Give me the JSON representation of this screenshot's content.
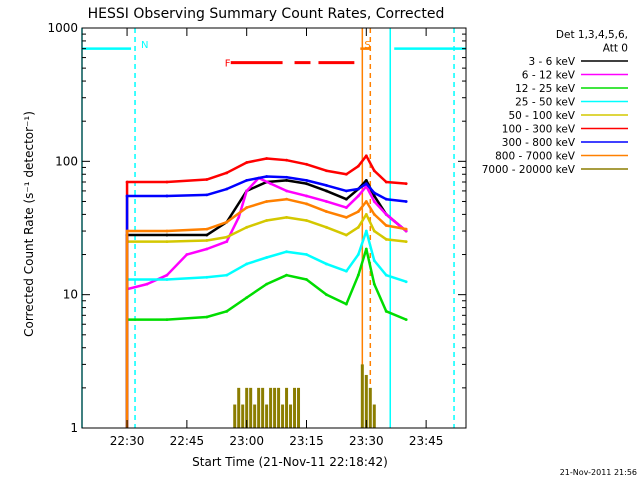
{
  "chart_data": {
    "type": "line",
    "title": "HESSI Observing Summary Count Rates, Corrected",
    "xlabel": "Start Time (21-Nov-11 22:18:42)",
    "ylabel": "Corrected Count Rate (s⁻¹ detector⁻¹)",
    "yscale": "log",
    "ylim": [
      1,
      1000
    ],
    "xlim": [
      "22:18:42",
      "23:55:00"
    ],
    "x_ticks": [
      "22:30",
      "22:45",
      "23:00",
      "23:15",
      "23:30",
      "23:45"
    ],
    "y_ticks": [
      "1",
      "10",
      "100",
      "1000"
    ],
    "legend": {
      "title_lines": [
        "Det 1,3,4,5,6,",
        "Att 0"
      ],
      "placement": "right",
      "entries": [
        {
          "label": "3 - 6 keV",
          "color": "#000000"
        },
        {
          "label": "6 - 12 keV",
          "color": "#ff00ff"
        },
        {
          "label": "12 - 25 keV",
          "color": "#00dd00"
        },
        {
          "label": "25 - 50 keV",
          "color": "#00ffff"
        },
        {
          "label": "50 - 100 keV",
          "color": "#d4c800"
        },
        {
          "label": "100 - 300 keV",
          "color": "#ff0000"
        },
        {
          "label": "300 - 800 keV",
          "color": "#0000ff"
        },
        {
          "label": "800 - 7000 keV",
          "color": "#ff8000"
        },
        {
          "label": "7000 - 20000 keV",
          "color": "#8b7d00"
        }
      ]
    },
    "series": [
      {
        "name": "3 - 6 keV",
        "color": "#000000",
        "x": [
          "22:30:00",
          "22:40:00",
          "22:50:00",
          "22:55:00",
          "23:00:00",
          "23:05:00",
          "23:10:00",
          "23:15:00",
          "23:20:00",
          "23:25:00",
          "23:28:00",
          "23:30:00",
          "23:32:00",
          "23:35:00",
          "23:40:00"
        ],
        "y": [
          28,
          28,
          28,
          35,
          60,
          70,
          72,
          68,
          60,
          52,
          62,
          72,
          55,
          40,
          30
        ]
      },
      {
        "name": "6 - 12 keV",
        "color": "#ff00ff",
        "x": [
          "22:30:00",
          "22:35:00",
          "22:40:00",
          "22:45:00",
          "22:50:00",
          "22:55:00",
          "22:58:00",
          "23:00:00",
          "23:03:00",
          "23:06:00",
          "23:10:00",
          "23:15:00",
          "23:20:00",
          "23:25:00",
          "23:28:00",
          "23:30:00",
          "23:32:00",
          "23:35:00",
          "23:40:00"
        ],
        "y": [
          11,
          12,
          14,
          20,
          22,
          25,
          38,
          60,
          75,
          68,
          60,
          55,
          50,
          45,
          55,
          65,
          50,
          40,
          30
        ]
      },
      {
        "name": "12 - 25 keV",
        "color": "#00dd00",
        "x": [
          "22:30:00",
          "22:40:00",
          "22:50:00",
          "22:55:00",
          "23:00:00",
          "23:05:00",
          "23:10:00",
          "23:15:00",
          "23:20:00",
          "23:25:00",
          "23:28:00",
          "23:30:00",
          "23:32:00",
          "23:35:00",
          "23:40:00"
        ],
        "y": [
          6.5,
          6.5,
          6.8,
          7.5,
          9.5,
          12,
          14,
          13,
          10,
          8.5,
          14,
          22,
          12,
          7.5,
          6.5
        ]
      },
      {
        "name": "25 - 50 keV",
        "color": "#00ffff",
        "x": [
          "22:30:00",
          "22:40:00",
          "22:50:00",
          "22:55:00",
          "23:00:00",
          "23:05:00",
          "23:10:00",
          "23:15:00",
          "23:20:00",
          "23:25:00",
          "23:28:00",
          "23:30:00",
          "23:32:00",
          "23:35:00",
          "23:40:00"
        ],
        "y": [
          13,
          13,
          13.5,
          14,
          17,
          19,
          21,
          20,
          17,
          15,
          20,
          30,
          18,
          14,
          12.5
        ]
      },
      {
        "name": "50 - 100 keV",
        "color": "#d4c800",
        "x": [
          "22:30:00",
          "22:40:00",
          "22:50:00",
          "22:55:00",
          "23:00:00",
          "23:05:00",
          "23:10:00",
          "23:15:00",
          "23:20:00",
          "23:25:00",
          "23:28:00",
          "23:30:00",
          "23:32:00",
          "23:35:00",
          "23:40:00"
        ],
        "y": [
          25,
          25,
          25.5,
          27,
          32,
          36,
          38,
          36,
          32,
          28,
          32,
          40,
          30,
          26,
          25
        ]
      },
      {
        "name": "100 - 300 keV",
        "color": "#ff0000",
        "x": [
          "22:30:00",
          "22:40:00",
          "22:50:00",
          "22:55:00",
          "23:00:00",
          "23:05:00",
          "23:10:00",
          "23:15:00",
          "23:20:00",
          "23:25:00",
          "23:28:00",
          "23:30:00",
          "23:32:00",
          "23:35:00",
          "23:40:00"
        ],
        "y": [
          70,
          70,
          73,
          82,
          98,
          105,
          102,
          95,
          85,
          80,
          92,
          110,
          85,
          70,
          68
        ]
      },
      {
        "name": "300 - 800 keV",
        "color": "#0000ff",
        "x": [
          "22:30:00",
          "22:40:00",
          "22:50:00",
          "22:55:00",
          "23:00:00",
          "23:05:00",
          "23:10:00",
          "23:15:00",
          "23:20:00",
          "23:25:00",
          "23:28:00",
          "23:30:00",
          "23:32:00",
          "23:35:00",
          "23:40:00"
        ],
        "y": [
          55,
          55,
          56,
          62,
          72,
          77,
          76,
          72,
          66,
          60,
          62,
          68,
          58,
          52,
          50
        ]
      },
      {
        "name": "800 - 7000 keV",
        "color": "#ff8000",
        "x": [
          "22:30:00",
          "22:40:00",
          "22:50:00",
          "22:55:00",
          "23:00:00",
          "23:05:00",
          "23:10:00",
          "23:15:00",
          "23:20:00",
          "23:25:00",
          "23:28:00",
          "23:30:00",
          "23:32:00",
          "23:35:00",
          "23:40:00"
        ],
        "y": [
          30,
          30,
          31,
          35,
          45,
          50,
          52,
          48,
          42,
          38,
          42,
          50,
          40,
          33,
          31
        ]
      },
      {
        "name": "7000 - 20000 keV",
        "color": "#8b7d00",
        "x": [
          "22:57:00",
          "22:58:00",
          "22:59:00",
          "23:00:00",
          "23:01:00",
          "23:02:00",
          "23:03:00",
          "23:04:00",
          "23:05:00",
          "23:06:00",
          "23:07:00",
          "23:08:00",
          "23:09:00",
          "23:10:00",
          "23:11:00",
          "23:12:00",
          "23:13:00",
          "23:29:00",
          "23:30:00",
          "23:31:00",
          "23:32:00"
        ],
        "y": [
          1.5,
          2,
          1.5,
          2,
          2,
          1.5,
          2,
          2,
          1.5,
          2,
          2,
          2,
          1.5,
          2,
          1.5,
          2,
          2,
          3,
          2.5,
          2,
          1.5
        ]
      }
    ],
    "vertical_markers": [
      {
        "x": "22:18:42",
        "color": "#00ffff",
        "style": "solid"
      },
      {
        "x": "22:32:00",
        "color": "#00ffff",
        "style": "dashed"
      },
      {
        "x": "23:29:00",
        "color": "#ff8000",
        "style": "solid"
      },
      {
        "x": "23:31:00",
        "color": "#ff8000",
        "style": "dashed"
      },
      {
        "x": "23:36:00",
        "color": "#00ffff",
        "style": "solid"
      },
      {
        "x": "23:52:00",
        "color": "#00ffff",
        "style": "dashed"
      }
    ],
    "annotations": [
      {
        "label": "N",
        "color": "#00ffff",
        "x": "22:32:00"
      },
      {
        "label": "F",
        "color": "#ff0000",
        "x": "22:53:00"
      },
      {
        "label": "S",
        "color": "#ff8000",
        "x": "23:28:00"
      }
    ],
    "bars": [
      {
        "name": "night",
        "color": "#00ffff",
        "from": "22:18:42",
        "to": "22:31:00",
        "y": 700
      },
      {
        "name": "night",
        "color": "#00ffff",
        "from": "23:37:00",
        "to": "23:55:00",
        "y": 700
      },
      {
        "name": "flare",
        "color": "#ff0000",
        "from": "22:56:00",
        "to": "23:09:00",
        "y": 550
      },
      {
        "name": "flare",
        "color": "#ff0000",
        "from": "23:12:00",
        "to": "23:16:00",
        "y": 550
      },
      {
        "name": "flare",
        "color": "#ff0000",
        "from": "23:18:00",
        "to": "23:27:00",
        "y": 550
      },
      {
        "name": "saa",
        "color": "#ff8000",
        "from": "23:28:30",
        "to": "23:31:00",
        "y": 700
      }
    ],
    "footer": "21-Nov-2011 21:56"
  }
}
